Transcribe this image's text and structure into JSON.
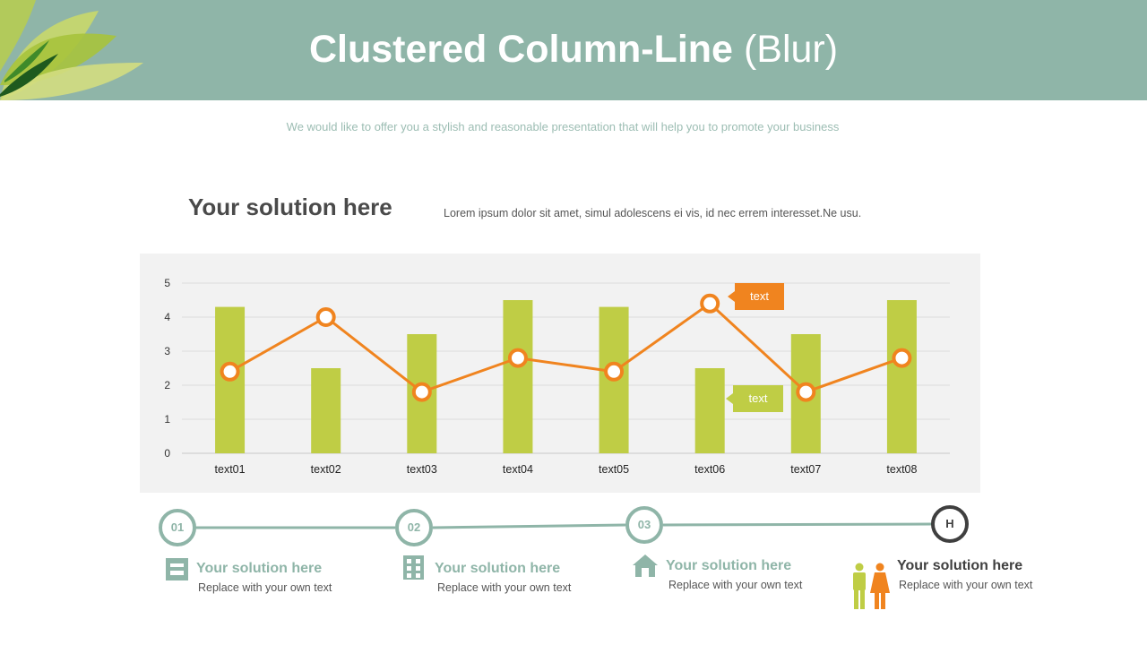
{
  "header": {
    "title_bold": "Clustered Column-Line",
    "title_light": "(Blur)"
  },
  "subtitle": "We would like to offer you a stylish and reasonable presentation that will help you to promote your business",
  "section": {
    "heading": "Your solution here",
    "description": "Lorem ipsum dolor sit amet, simul adolescens ei vis, id nec errem interesset.Ne usu."
  },
  "colors": {
    "header_bg": "#8fb5a8",
    "bar": "#bfcd45",
    "line": "#f0841f",
    "panel_bg": "#f2f2f2",
    "dark": "#3f3f3f"
  },
  "chart_data": {
    "type": "bar",
    "categories": [
      "text01",
      "text02",
      "text03",
      "text04",
      "text05",
      "text06",
      "text07",
      "text08"
    ],
    "series": [
      {
        "type": "bar",
        "values": [
          4.3,
          2.5,
          3.5,
          4.5,
          4.3,
          2.5,
          3.5,
          4.5
        ]
      },
      {
        "type": "line",
        "values": [
          2.4,
          4.0,
          1.8,
          2.8,
          2.4,
          4.4,
          1.8,
          2.8
        ]
      }
    ],
    "yticks": [
      0,
      1,
      2,
      3,
      4,
      5
    ],
    "ylim": [
      0,
      5
    ],
    "grid": true,
    "annotations": [
      {
        "text": "text",
        "color": "#f0841f"
      },
      {
        "text": "text",
        "color": "#bfcd45"
      }
    ]
  },
  "timeline": {
    "steps": [
      {
        "number": "01",
        "icon": "layout-icon",
        "title": "Your solution here",
        "text": "Replace with your own text"
      },
      {
        "number": "02",
        "icon": "building-icon",
        "title": "Your solution here",
        "text": "Replace with your own text"
      },
      {
        "number": "03",
        "icon": "house-icon",
        "title": "Your solution here",
        "text": "Replace with your own text"
      },
      {
        "number": "H",
        "icon": "people-icon",
        "title": "Your solution here",
        "text": "Replace with your own text"
      }
    ]
  }
}
